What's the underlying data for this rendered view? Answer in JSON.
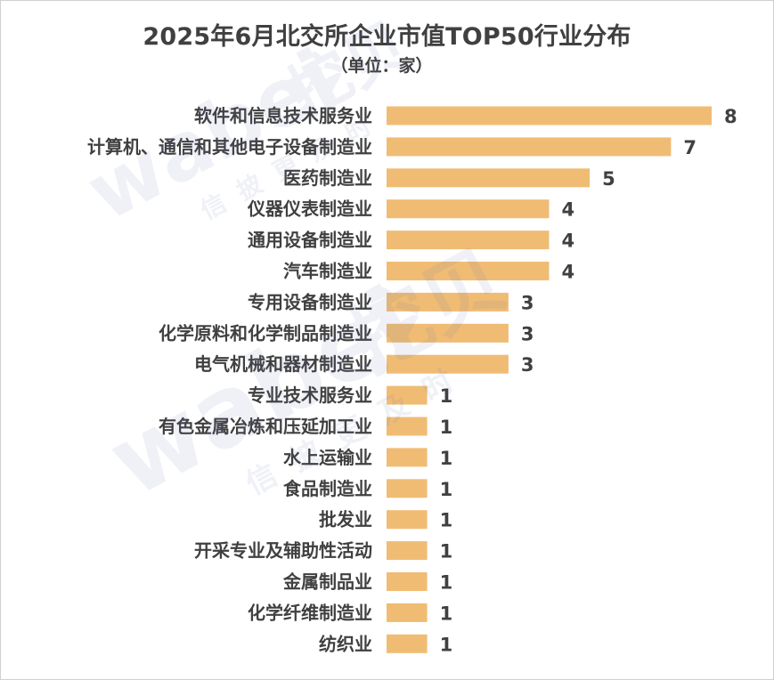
{
  "chart_data": {
    "type": "bar",
    "orientation": "horizontal",
    "title": "2025年6月北交所企业市值TOP50行业分布",
    "subtitle": "（单位：家）",
    "categories": [
      "软件和信息技术服务业",
      "计算机、通信和其他电子设备制造业",
      "医药制造业",
      "仪器仪表制造业",
      "通用设备制造业",
      "汽车制造业",
      "专用设备制造业",
      "化学原料和化学制品制造业",
      "电气机械和器材制造业",
      "专业技术服务业",
      "有色金属冶炼和压延加工业",
      "水上运输业",
      "食品制造业",
      "批发业",
      "开采专业及辅助性活动",
      "金属制品业",
      "化学纤维制造业",
      "纺织业"
    ],
    "values": [
      8,
      7,
      5,
      4,
      4,
      4,
      3,
      3,
      3,
      1,
      1,
      1,
      1,
      1,
      1,
      1,
      1,
      1
    ],
    "xlim": [
      0,
      8
    ],
    "grid": false,
    "legend": "none",
    "bar_color": "#F0BC74",
    "label_color": "#404040"
  },
  "watermark": {
    "brand": "wabei",
    "brand_cn": "挖贝",
    "slogan": "信披更及时"
  }
}
